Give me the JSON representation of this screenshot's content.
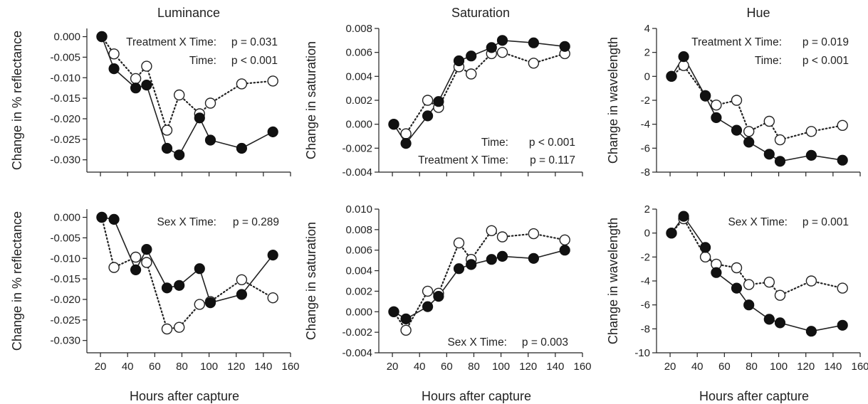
{
  "chart_data": [
    {
      "type": "line",
      "title": "Luminance",
      "xlabel": "",
      "ylabel": "Change in % reflectance",
      "xlim": [
        10,
        160
      ],
      "ylim": [
        -0.033,
        0.002
      ],
      "xticks": [
        20,
        40,
        60,
        80,
        100,
        120,
        140,
        160
      ],
      "xtick_labels": [
        "",
        "",
        "",
        "",
        "",
        "",
        "",
        ""
      ],
      "yticks": [
        0.0,
        -0.005,
        -0.01,
        -0.015,
        -0.02,
        -0.025,
        -0.03
      ],
      "ytick_labels": [
        "0.000",
        "-0.005",
        "-0.010",
        "-0.015",
        "-0.020",
        "-0.025",
        "-0.030"
      ],
      "series": [
        {
          "style": "solid-filled",
          "x": [
            21,
            30,
            46,
            54,
            69,
            78,
            93,
            101,
            124,
            147
          ],
          "y": [
            0.0,
            -0.0078,
            -0.0125,
            -0.0118,
            -0.0272,
            -0.0288,
            -0.0198,
            -0.0252,
            -0.0272,
            -0.0232
          ]
        },
        {
          "style": "dotted-open",
          "x": [
            21,
            30,
            46,
            54,
            69,
            78,
            93,
            101,
            124,
            147
          ],
          "y": [
            0.0,
            -0.0042,
            -0.0102,
            -0.0072,
            -0.0228,
            -0.0142,
            -0.0188,
            -0.0162,
            -0.0115,
            -0.0108
          ]
        }
      ],
      "annotations": [
        {
          "label": "Treatment X Time:",
          "value": "p = 0.031"
        },
        {
          "label": "Time:",
          "value": "p < 0.001"
        }
      ]
    },
    {
      "type": "line",
      "title": "Saturation",
      "xlabel": "",
      "ylabel": "Change in saturation",
      "xlim": [
        10,
        160
      ],
      "ylim": [
        -0.004,
        0.008
      ],
      "xticks": [
        20,
        40,
        60,
        80,
        100,
        120,
        140,
        160
      ],
      "xtick_labels": [
        "",
        "",
        "",
        "",
        "",
        "",
        "",
        ""
      ],
      "yticks": [
        -0.004,
        -0.002,
        0.0,
        0.002,
        0.004,
        0.006,
        0.008
      ],
      "ytick_labels": [
        "-0.004",
        "-0.002",
        "0.000",
        "0.002",
        "0.004",
        "0.006",
        "0.008"
      ],
      "series": [
        {
          "style": "solid-filled",
          "x": [
            21,
            30,
            46,
            54,
            69,
            78,
            93,
            101,
            124,
            147
          ],
          "y": [
            0.0,
            -0.0016,
            0.0007,
            0.0019,
            0.0053,
            0.0057,
            0.0064,
            0.007,
            0.0068,
            0.0065
          ]
        },
        {
          "style": "dotted-open",
          "x": [
            21,
            30,
            46,
            54,
            69,
            78,
            93,
            101,
            124,
            147
          ],
          "y": [
            0.0,
            -0.0008,
            0.002,
            0.0014,
            0.0048,
            0.0042,
            0.0059,
            0.006,
            0.0051,
            0.0059
          ]
        }
      ],
      "annotations": [
        {
          "label": "Time:",
          "value": "p < 0.001"
        },
        {
          "label": "Treatment X Time:",
          "value": "p = 0.117"
        }
      ]
    },
    {
      "type": "line",
      "title": "Hue",
      "xlabel": "",
      "ylabel": "Change in wavelength",
      "xlim": [
        10,
        160
      ],
      "ylim": [
        -8,
        4
      ],
      "xticks": [
        20,
        40,
        60,
        80,
        100,
        120,
        140,
        160
      ],
      "xtick_labels": [
        "",
        "",
        "",
        "",
        "",
        "",
        "",
        ""
      ],
      "yticks": [
        -8,
        -6,
        -4,
        -2,
        0,
        2,
        4
      ],
      "ytick_labels": [
        "-8",
        "-6",
        "-4",
        "-2",
        "0",
        "2",
        "4"
      ],
      "series": [
        {
          "style": "solid-filled",
          "x": [
            21,
            30,
            46,
            54,
            69,
            78,
            93,
            101,
            124,
            147
          ],
          "y": [
            0.0,
            1.65,
            -1.65,
            -3.45,
            -4.5,
            -5.5,
            -6.5,
            -7.1,
            -6.6,
            -7.0
          ]
        },
        {
          "style": "dotted-open",
          "x": [
            21,
            30,
            46,
            54,
            69,
            78,
            93,
            101,
            124,
            147
          ],
          "y": [
            0.0,
            0.9,
            -1.6,
            -2.4,
            -2.0,
            -4.6,
            -3.75,
            -5.3,
            -4.6,
            -4.1
          ]
        }
      ],
      "annotations": [
        {
          "label": "Treatment X Time:",
          "value": "p = 0.019"
        },
        {
          "label": "Time:",
          "value": "p < 0.001"
        }
      ]
    },
    {
      "type": "line",
      "title": "",
      "xlabel": "Hours after capture",
      "ylabel": "Change in % reflectance",
      "xlim": [
        10,
        160
      ],
      "ylim": [
        -0.033,
        0.002
      ],
      "xticks": [
        20,
        40,
        60,
        80,
        100,
        120,
        140,
        160
      ],
      "xtick_labels": [
        "20",
        "40",
        "60",
        "80",
        "100",
        "120",
        "140",
        "160"
      ],
      "yticks": [
        0.0,
        -0.005,
        -0.01,
        -0.015,
        -0.02,
        -0.025,
        -0.03
      ],
      "ytick_labels": [
        "0.000",
        "-0.005",
        "-0.010",
        "-0.015",
        "-0.020",
        "-0.025",
        "-0.030"
      ],
      "series": [
        {
          "style": "solid-filled",
          "x": [
            21,
            30,
            46,
            54,
            69,
            78,
            93,
            101,
            124,
            147
          ],
          "y": [
            0.0,
            -0.0005,
            -0.0128,
            -0.0078,
            -0.0172,
            -0.0166,
            -0.0125,
            -0.0208,
            -0.0188,
            -0.0092
          ]
        },
        {
          "style": "dotted-open",
          "x": [
            21,
            30,
            46,
            54,
            69,
            78,
            93,
            101,
            124,
            147
          ],
          "y": [
            0.0,
            -0.0122,
            -0.0097,
            -0.011,
            -0.0272,
            -0.0268,
            -0.0212,
            -0.0205,
            -0.0152,
            -0.0196
          ]
        }
      ],
      "annotations": [
        {
          "label": "Sex X Time:",
          "value": "p = 0.289"
        }
      ]
    },
    {
      "type": "line",
      "title": "",
      "xlabel": "Hours after capture",
      "ylabel": "Change in saturation",
      "xlim": [
        10,
        160
      ],
      "ylim": [
        -0.004,
        0.01
      ],
      "xticks": [
        20,
        40,
        60,
        80,
        100,
        120,
        140,
        160
      ],
      "xtick_labels": [
        "20",
        "40",
        "60",
        "80",
        "100",
        "120",
        "140",
        "160"
      ],
      "yticks": [
        -0.004,
        -0.002,
        0.0,
        0.002,
        0.004,
        0.006,
        0.008,
        0.01
      ],
      "ytick_labels": [
        "-0.004",
        "-0.002",
        "0.000",
        "0.002",
        "0.004",
        "0.006",
        "0.008",
        "0.010"
      ],
      "series": [
        {
          "style": "solid-filled",
          "x": [
            21,
            30,
            46,
            54,
            69,
            78,
            93,
            101,
            124,
            147
          ],
          "y": [
            0.0,
            -0.0007,
            0.0005,
            0.0015,
            0.0042,
            0.0046,
            0.0051,
            0.0054,
            0.0052,
            0.006
          ]
        },
        {
          "style": "dotted-open",
          "x": [
            21,
            30,
            46,
            54,
            69,
            78,
            93,
            101,
            124,
            147
          ],
          "y": [
            0.0,
            -0.0018,
            0.002,
            0.0018,
            0.0067,
            0.0051,
            0.0079,
            0.0073,
            0.0076,
            0.007
          ]
        }
      ],
      "annotations": [
        {
          "label": "Sex X Time:",
          "value": "p = 0.003"
        }
      ]
    },
    {
      "type": "line",
      "title": "",
      "xlabel": "Hours after capture",
      "ylabel": "Change in wavelength",
      "xlim": [
        10,
        160
      ],
      "ylim": [
        -10,
        2
      ],
      "xticks": [
        20,
        40,
        60,
        80,
        100,
        120,
        140,
        160
      ],
      "xtick_labels": [
        "20",
        "40",
        "60",
        "80",
        "100",
        "120",
        "140",
        "160"
      ],
      "yticks": [
        -10,
        -8,
        -6,
        -4,
        -2,
        0,
        2
      ],
      "ytick_labels": [
        "-10",
        "-8",
        "-6",
        "-4",
        "-2",
        "0",
        "2"
      ],
      "series": [
        {
          "style": "solid-filled",
          "x": [
            21,
            30,
            46,
            54,
            69,
            78,
            93,
            101,
            124,
            147
          ],
          "y": [
            0.0,
            1.4,
            -1.2,
            -3.3,
            -4.6,
            -6.0,
            -7.2,
            -7.5,
            -8.2,
            -7.7
          ]
        },
        {
          "style": "dotted-open",
          "x": [
            21,
            30,
            46,
            54,
            69,
            78,
            93,
            101,
            124,
            147
          ],
          "y": [
            0.0,
            1.2,
            -2.0,
            -2.6,
            -2.9,
            -4.3,
            -4.1,
            -5.2,
            -4.0,
            -4.6
          ]
        }
      ],
      "annotations": [
        {
          "label": "Sex X Time:",
          "value": "p = 0.001"
        }
      ]
    }
  ]
}
